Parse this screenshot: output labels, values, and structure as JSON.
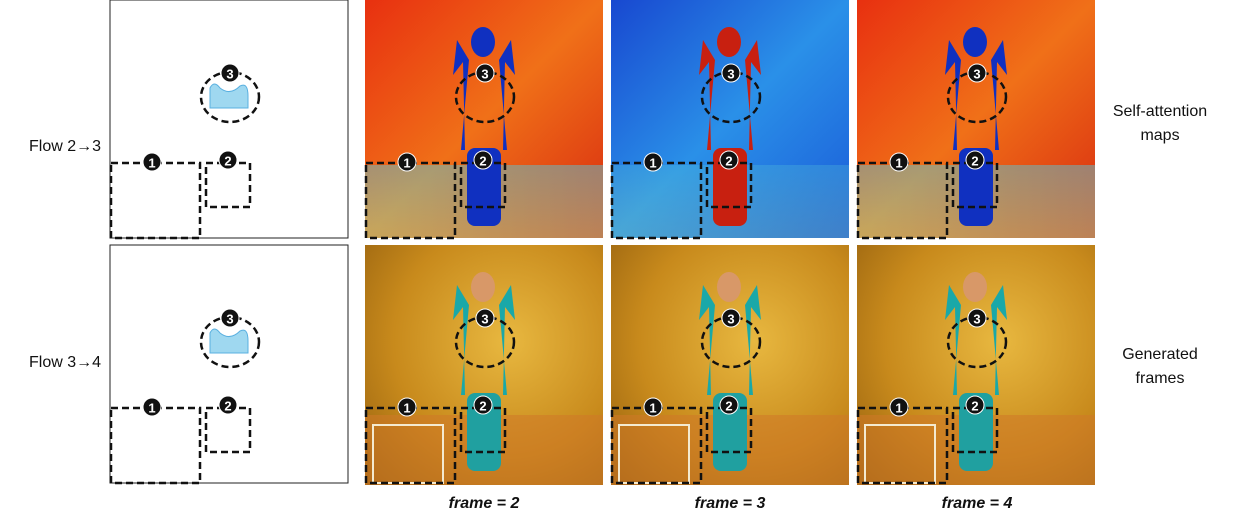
{
  "rows": [
    {
      "label": "Flow 2→3",
      "side_label": "Self-attention maps"
    },
    {
      "label": "Flow 3→4",
      "side_label": "Generated frames"
    }
  ],
  "captions": [
    "frame = 2",
    "frame = 3",
    "frame = 4"
  ],
  "markers": [
    "1",
    "2",
    "3"
  ]
}
